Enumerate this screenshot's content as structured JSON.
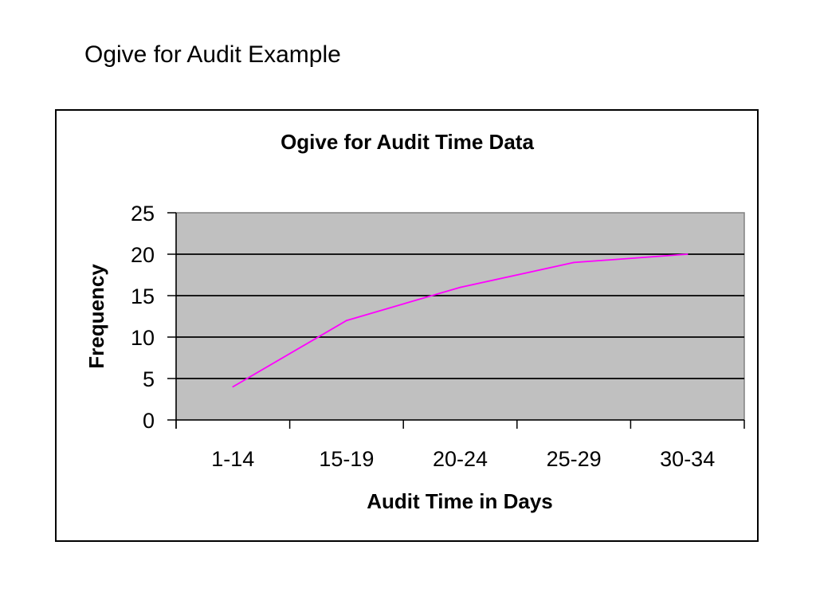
{
  "slide": {
    "title": "Ogive for Audit Example"
  },
  "chart_data": {
    "type": "line",
    "title": "Ogive for Audit Time Data",
    "xlabel": "Audit Time in Days",
    "ylabel": "Frequency",
    "categories": [
      "1-14",
      "15-19",
      "20-24",
      "25-29",
      "30-34"
    ],
    "series": [
      {
        "values": [
          4,
          12,
          16,
          19,
          20
        ]
      }
    ],
    "ylim": [
      0,
      25
    ],
    "yticks": [
      0,
      5,
      10,
      15,
      20,
      25
    ],
    "grid": true,
    "legend": "none",
    "colors": {
      "line": "#ff00ff",
      "plot_background": "#c0c0c0",
      "gridline": "#000000"
    }
  }
}
